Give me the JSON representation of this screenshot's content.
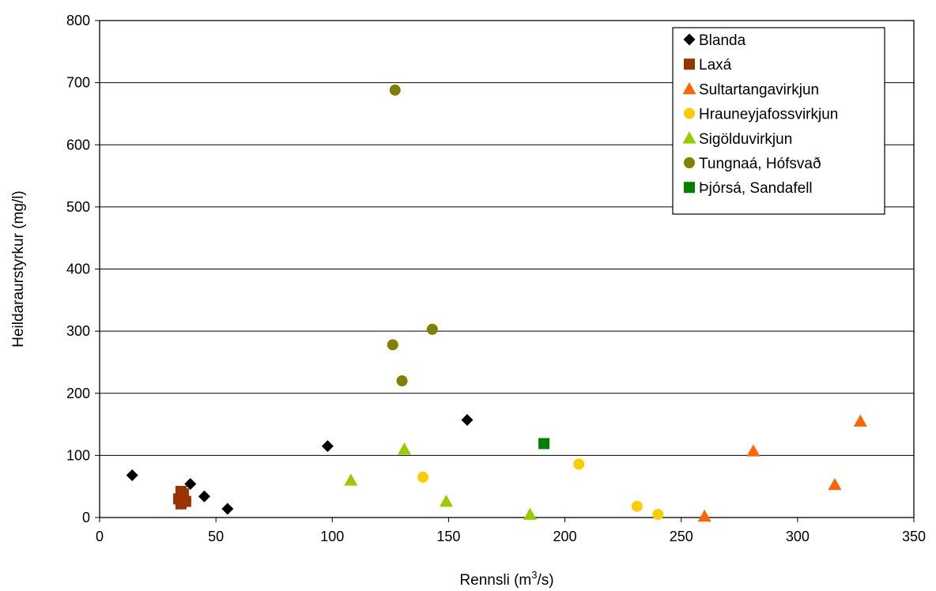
{
  "chart_data": {
    "type": "scatter",
    "xlabel_main": "Rennsli (m",
    "xlabel_sup": "3",
    "xlabel_tail": "/s)",
    "ylabel": "Heildaraurstyrkur (mg/l)",
    "xlim": [
      0,
      350
    ],
    "ylim": [
      0,
      800
    ],
    "x_ticks": [
      0,
      50,
      100,
      150,
      200,
      250,
      300,
      350
    ],
    "y_ticks": [
      0,
      100,
      200,
      300,
      400,
      500,
      600,
      700,
      800
    ],
    "grid": "horizontal",
    "legend_position": "top-right",
    "series": [
      {
        "name": "Blanda",
        "marker": "diamond",
        "color": "#000000",
        "points": [
          [
            14,
            68
          ],
          [
            37,
            28
          ],
          [
            39,
            54
          ],
          [
            45,
            34
          ],
          [
            55,
            14
          ],
          [
            98,
            115
          ],
          [
            158,
            157
          ]
        ]
      },
      {
        "name": "Laxá",
        "marker": "square",
        "color": "#993300",
        "points": [
          [
            35,
            42
          ],
          [
            36,
            35
          ],
          [
            34,
            30
          ],
          [
            37,
            26
          ],
          [
            35,
            22
          ],
          [
            36,
            38
          ]
        ]
      },
      {
        "name": "Sultartangavirkjun",
        "marker": "triangle",
        "color": "#FF6600",
        "points": [
          [
            260,
            2
          ],
          [
            281,
            107
          ],
          [
            316,
            53
          ],
          [
            327,
            155
          ]
        ]
      },
      {
        "name": "Hrauneyjafossvirkjun",
        "marker": "circle",
        "color": "#FFCC00",
        "points": [
          [
            139,
            65
          ],
          [
            206,
            86
          ],
          [
            231,
            18
          ],
          [
            240,
            5
          ]
        ]
      },
      {
        "name": "Sigölduvirkjun",
        "marker": "triangle",
        "color": "#99CC00",
        "points": [
          [
            108,
            60
          ],
          [
            131,
            110
          ],
          [
            149,
            26
          ],
          [
            185,
            5
          ]
        ]
      },
      {
        "name": "Tungnaá, Hófsvað",
        "marker": "circle",
        "color": "#808000",
        "points": [
          [
            127,
            688
          ],
          [
            126,
            278
          ],
          [
            130,
            220
          ],
          [
            143,
            303
          ]
        ]
      },
      {
        "name": "Þjórsá, Sandafell",
        "marker": "square",
        "color": "#008000",
        "points": [
          [
            191,
            119
          ]
        ]
      }
    ]
  }
}
